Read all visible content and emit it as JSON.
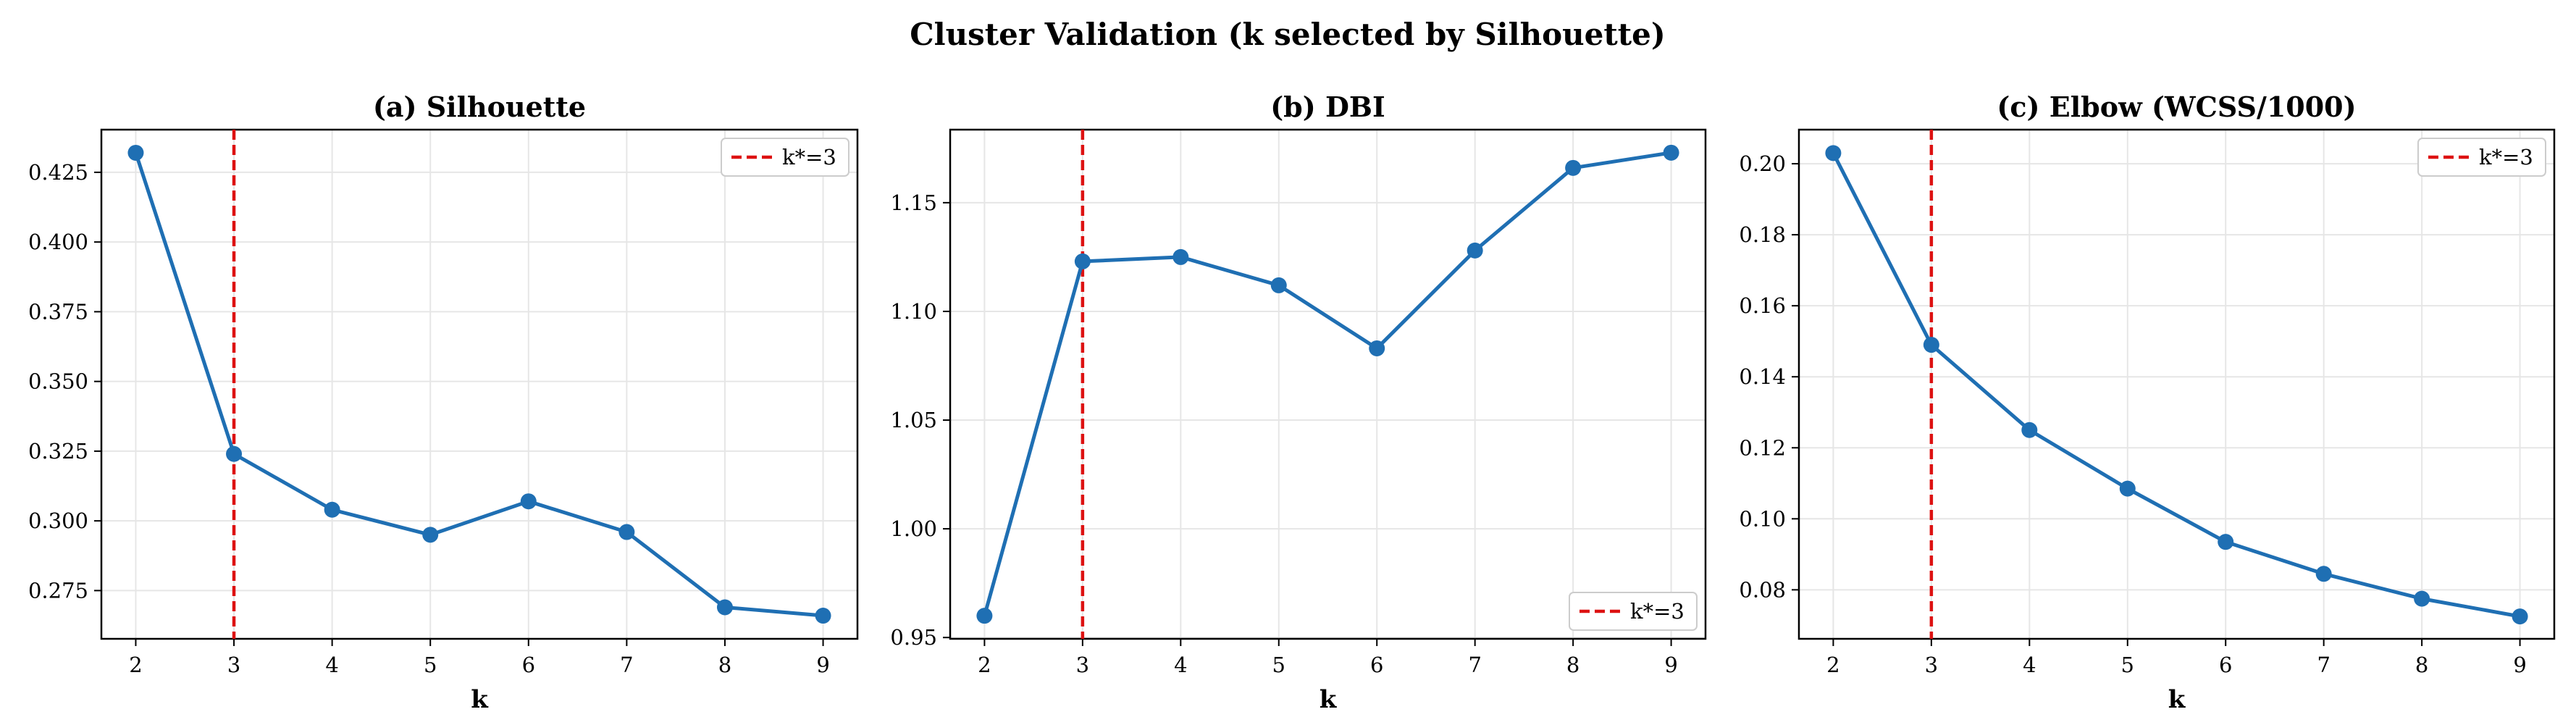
{
  "figure": {
    "title": "Cluster Validation (k selected by Silhouette)"
  },
  "style": {
    "line_color": "#1f6fb3",
    "marker_color": "#1f6fb3",
    "vline_color": "#dd1111",
    "grid_color": "#e6e6e6"
  },
  "chart_data": [
    {
      "type": "line",
      "title": "(a) Silhouette",
      "xlabel": "k",
      "ylabel": "",
      "x": [
        2,
        3,
        4,
        5,
        6,
        7,
        8,
        9
      ],
      "series": [
        {
          "values": [
            0.432,
            0.324,
            0.304,
            0.295,
            0.307,
            0.296,
            0.269,
            0.266
          ]
        }
      ],
      "xticks": [
        2,
        3,
        4,
        5,
        6,
        7,
        8,
        9
      ],
      "yticks": [
        "0.275",
        "0.300",
        "0.325",
        "0.350",
        "0.375",
        "0.400",
        "0.425"
      ],
      "xlim": [
        1.65,
        9.35
      ],
      "ylim": [
        0.2577,
        0.4403
      ],
      "vline": {
        "x": 3,
        "label": "k*=3"
      },
      "legend_position": "upper right",
      "grid": true
    },
    {
      "type": "line",
      "title": "(b) DBI",
      "xlabel": "k",
      "ylabel": "",
      "x": [
        2,
        3,
        4,
        5,
        6,
        7,
        8,
        9
      ],
      "series": [
        {
          "values": [
            0.96,
            1.123,
            1.125,
            1.112,
            1.083,
            1.128,
            1.166,
            1.173
          ]
        }
      ],
      "xticks": [
        2,
        3,
        4,
        5,
        6,
        7,
        8,
        9
      ],
      "yticks": [
        "0.95",
        "1.00",
        "1.05",
        "1.10",
        "1.15"
      ],
      "xlim": [
        1.65,
        9.35
      ],
      "ylim": [
        0.9494,
        1.1836
      ],
      "vline": {
        "x": 3,
        "label": "k*=3"
      },
      "legend_position": "lower right",
      "grid": true
    },
    {
      "type": "line",
      "title": "(c) Elbow (WCSS/1000)",
      "xlabel": "k",
      "ylabel": "",
      "x": [
        2,
        3,
        4,
        5,
        6,
        7,
        8,
        9
      ],
      "series": [
        {
          "values": [
            0.203,
            0.149,
            0.125,
            0.1085,
            0.0935,
            0.0845,
            0.0775,
            0.0725
          ]
        }
      ],
      "xticks": [
        2,
        3,
        4,
        5,
        6,
        7,
        8,
        9
      ],
      "yticks": [
        "0.08",
        "0.10",
        "0.12",
        "0.14",
        "0.16",
        "0.18",
        "0.20"
      ],
      "xlim": [
        1.65,
        9.35
      ],
      "ylim": [
        0.0662,
        0.2096
      ],
      "vline": {
        "x": 3,
        "label": "k*=3"
      },
      "legend_position": "upper right",
      "grid": true
    }
  ]
}
